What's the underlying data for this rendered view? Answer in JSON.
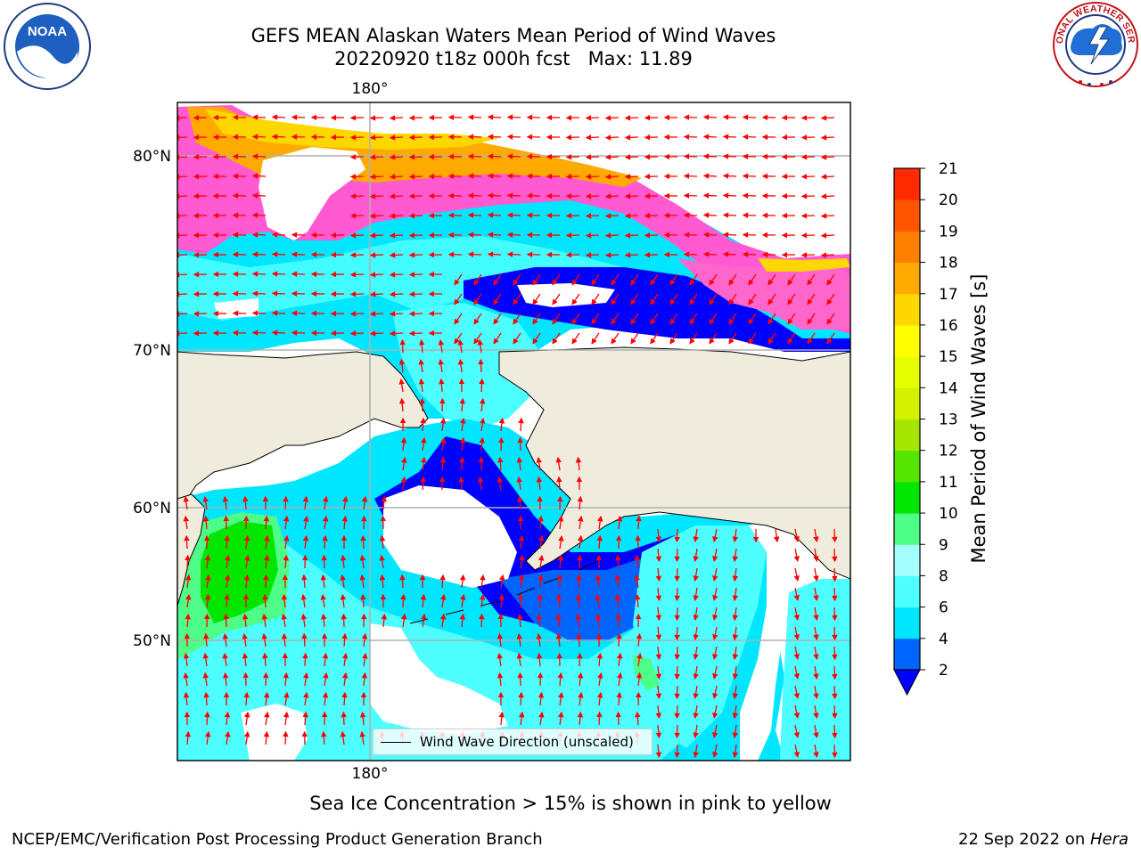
{
  "header": {
    "title_line1": "GEFS MEAN Alaskan Waters Mean Period of Wind Waves",
    "title_line2": "20220920 t18z 000h fcst   Max: 11.89"
  },
  "logos": {
    "left": {
      "icon": "noaa-logo",
      "text": "NOAA"
    },
    "right": {
      "icon": "nws-logo",
      "text": "NATIONAL WEATHER SERVICE"
    }
  },
  "map": {
    "lon_label_top": "180°",
    "lon_label_bottom": "180°",
    "lat_labels": [
      "80°N",
      "70°N",
      "60°N",
      "50°N"
    ],
    "legend_label": "Wind Wave Direction (unscaled)",
    "land_color": "#efecdd",
    "arrow_color": "#ff0000"
  },
  "colorbar": {
    "label": "Mean Period of Wind Waves [s]",
    "ticks": [
      "2",
      "4",
      "6",
      "8",
      "9",
      "10",
      "11",
      "12",
      "13",
      "14",
      "15",
      "16",
      "17",
      "18",
      "19",
      "20",
      "21"
    ],
    "colors": [
      "#0064ff",
      "#00e6ff",
      "#4dffff",
      "#a6ffff",
      "#4dff88",
      "#00e600",
      "#55e600",
      "#a6e600",
      "#d2f200",
      "#e6ff00",
      "#ffff00",
      "#ffd700",
      "#ffaa00",
      "#ff8000",
      "#ff5500",
      "#ff2a00"
    ],
    "extend_color": "#0000ff"
  },
  "subtitle": "Sea Ice Concentration > 15% is shown in pink to yellow",
  "footer": {
    "left": "NCEP/EMC/Verification Post Processing Product Generation Branch",
    "right_date": "22 Sep 2022 on ",
    "right_host": "Hera"
  }
}
